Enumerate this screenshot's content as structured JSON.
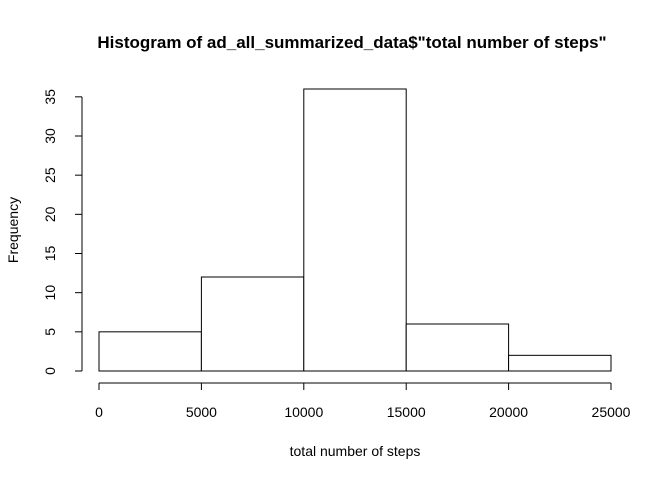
{
  "chart_data": {
    "type": "bar",
    "title": "Histogram of ad_all_summarized_data$\"total number of steps\"",
    "xlabel": "total number of steps",
    "ylabel": "Frequency",
    "bins": [
      {
        "from": 0,
        "to": 5000,
        "count": 5
      },
      {
        "from": 5000,
        "to": 10000,
        "count": 12
      },
      {
        "from": 10000,
        "to": 15000,
        "count": 36
      },
      {
        "from": 15000,
        "to": 20000,
        "count": 6
      },
      {
        "from": 20000,
        "to": 25000,
        "count": 2
      }
    ],
    "xlim": [
      0,
      25000
    ],
    "ylim": [
      0,
      36
    ],
    "x_ticks": [
      0,
      5000,
      10000,
      15000,
      20000,
      25000
    ],
    "y_ticks": [
      0,
      5,
      10,
      15,
      20,
      25,
      30,
      35
    ],
    "grid": false,
    "legend": "none",
    "bar_fill": "#ffffff",
    "bar_stroke": "#000000"
  }
}
